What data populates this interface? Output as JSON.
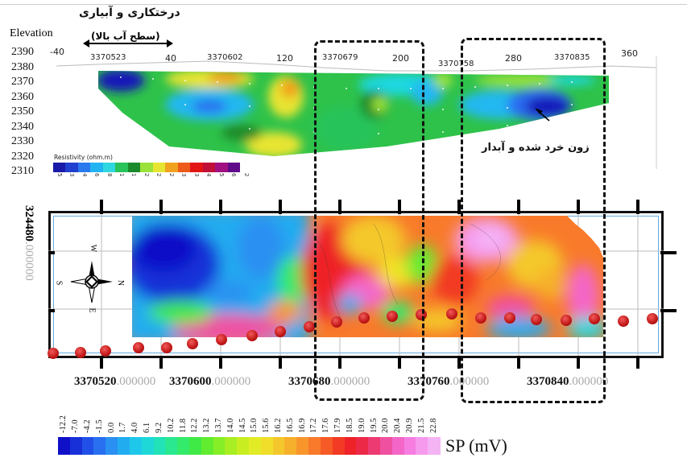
{
  "header": {
    "title_fa": "درختکاری و آبیاری",
    "water_level_label": "(سطح آب بالا)",
    "arrow_symbol": "⟷"
  },
  "resistivity_section": {
    "elevation_label": "Elevation",
    "elevations": [
      "2390",
      "2380",
      "2370",
      "2360",
      "2350",
      "2340",
      "2330",
      "2320",
      "2310"
    ],
    "distance_ticks": [
      "-40",
      "40",
      "120",
      "200",
      "280",
      "360"
    ],
    "northing_labels": [
      "3370523",
      "3370602",
      "3370679",
      "3370758",
      "3370835"
    ],
    "legend_title": "Resistivity (ohm.m)",
    "legend_values": [
      "5",
      "3",
      "4",
      "6",
      "8",
      "1",
      "1",
      "2",
      "2",
      "2",
      "3",
      "3",
      "4",
      "5",
      "6",
      "2"
    ],
    "legend_colors": [
      "#1a1aa8",
      "#2040d0",
      "#2a78ee",
      "#22b4f2",
      "#2fd8e0",
      "#28c35a",
      "#1a8a2a",
      "#9ae23a",
      "#e6e632",
      "#f0a21e",
      "#ee5a1a",
      "#e21414",
      "#c01038",
      "#a01080",
      "#600a8a"
    ],
    "annotation_fa": "زون خرد شده و آبدار"
  },
  "sp_map": {
    "ylabel_main": "324480",
    "ylabel_frac": ".000000",
    "x_labels": [
      {
        "main": "3370520",
        "frac": ".000000"
      },
      {
        "main": "3370600",
        "frac": ".000000"
      },
      {
        "main": "3370680",
        "frac": ".000000"
      },
      {
        "main": "3370760",
        "frac": ".000000"
      },
      {
        "main": "3370840",
        "frac": ".000000"
      }
    ],
    "compass": {
      "n": "N",
      "s": "S",
      "e": "E",
      "w": "W"
    },
    "legend_label": "SP (mV)",
    "legend_values": [
      "-12.2",
      "-7.0",
      "-4.2",
      "-1.5",
      "0.0",
      "1.7",
      "4.0",
      "6.1",
      "9.2",
      "10.2",
      "11.8",
      "12.2",
      "13.2",
      "13.7",
      "14.0",
      "14.5",
      "15.0",
      "15.6",
      "16.2",
      "16.5",
      "16.9",
      "17.2",
      "17.6",
      "17.9",
      "18.5",
      "19.0",
      "19.5",
      "20.0",
      "20.4",
      "20.9",
      "21.5",
      "22.8"
    ],
    "legend_colors": [
      "#1010c8",
      "#1830d8",
      "#2050e8",
      "#2870f0",
      "#2a90f2",
      "#22acf0",
      "#1ec8ea",
      "#1ed8d8",
      "#22e2b8",
      "#2ae890",
      "#34ea6a",
      "#40ea46",
      "#62ec30",
      "#86ee26",
      "#a8ee22",
      "#c8ee22",
      "#e2ec26",
      "#f0de2a",
      "#f4c82c",
      "#f6b02c",
      "#f8962c",
      "#f87a2a",
      "#f65a26",
      "#f23a24",
      "#ee2228",
      "#ec2a48",
      "#ee3a72",
      "#f050a0",
      "#f466c8",
      "#f67ee0",
      "#f69aee",
      "#f4b4f4"
    ]
  }
}
